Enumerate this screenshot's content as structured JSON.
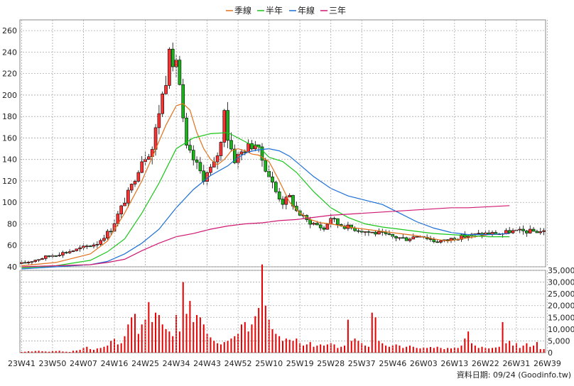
{
  "legend": [
    {
      "label": "季線",
      "color": "#e3701a"
    },
    {
      "label": "半年",
      "color": "#19c619"
    },
    {
      "label": "年線",
      "color": "#1a6fd6"
    },
    {
      "label": "三年",
      "color": "#d01873"
    }
  ],
  "footer": "資料日期: 09/24  (Goodinfo.tw)",
  "colors": {
    "up": "#ff3030",
    "down": "#19b519",
    "volume": "#e80000",
    "grid": "#aaaaaa"
  },
  "chart_data": [
    {
      "type": "candlestick",
      "ylim": [
        40,
        270
      ],
      "yticks": [
        40,
        60,
        80,
        100,
        120,
        140,
        160,
        180,
        200,
        220,
        240,
        260
      ],
      "x_labels": [
        "23W41",
        "23W50",
        "24W07",
        "24W16",
        "24W25",
        "24W34",
        "24W43",
        "24W52",
        "25W10",
        "25W19",
        "25W28",
        "25W37",
        "25W46",
        "26W03",
        "26W13",
        "26W22",
        "26W31",
        "26W39"
      ],
      "anchors": [
        [
          0,
          43
        ],
        [
          8,
          50
        ],
        [
          16,
          56
        ],
        [
          22,
          62
        ],
        [
          26,
          75
        ],
        [
          29,
          95
        ],
        [
          32,
          115
        ],
        [
          35,
          140
        ],
        [
          38,
          150
        ],
        [
          40,
          185
        ],
        [
          42,
          215
        ],
        [
          43,
          250
        ],
        [
          44,
          220
        ],
        [
          45,
          235
        ],
        [
          46,
          210
        ],
        [
          47,
          175
        ],
        [
          48,
          150
        ],
        [
          50,
          140
        ],
        [
          53,
          123
        ],
        [
          56,
          135
        ],
        [
          58,
          155
        ],
        [
          59,
          190
        ],
        [
          60,
          160
        ],
        [
          62,
          140
        ],
        [
          65,
          150
        ],
        [
          68,
          155
        ],
        [
          70,
          140
        ],
        [
          72,
          125
        ],
        [
          74,
          110
        ],
        [
          76,
          100
        ],
        [
          78,
          105
        ],
        [
          80,
          92
        ],
        [
          83,
          83
        ],
        [
          86,
          79
        ],
        [
          88,
          75
        ],
        [
          90,
          86
        ],
        [
          92,
          80
        ],
        [
          95,
          77
        ],
        [
          100,
          73
        ],
        [
          104,
          71
        ],
        [
          108,
          68
        ],
        [
          112,
          66
        ],
        [
          116,
          70
        ],
        [
          120,
          64
        ],
        [
          123,
          64
        ],
        [
          126,
          67
        ],
        [
          130,
          69
        ],
        [
          135,
          71
        ],
        [
          140,
          71
        ],
        [
          142,
          73
        ]
      ],
      "series": [
        {
          "name": "季線",
          "color": "#e3701a",
          "points": [
            [
              0,
              41
            ],
            [
              10,
              44
            ],
            [
              20,
              52
            ],
            [
              25,
              64
            ],
            [
              30,
              90
            ],
            [
              35,
              120
            ],
            [
              38,
              142
            ],
            [
              42,
              172
            ],
            [
              45,
              190
            ],
            [
              47,
              192
            ],
            [
              49,
              186
            ],
            [
              51,
              165
            ],
            [
              53,
              150
            ],
            [
              55,
              140
            ],
            [
              57,
              135
            ],
            [
              59,
              140
            ],
            [
              61,
              148
            ],
            [
              63,
              150
            ],
            [
              65,
              148
            ],
            [
              67,
              145
            ],
            [
              69,
              144
            ],
            [
              72,
              138
            ],
            [
              75,
              120
            ],
            [
              78,
              100
            ],
            [
              81,
              90
            ],
            [
              84,
              84
            ],
            [
              87,
              81
            ],
            [
              90,
              80
            ],
            [
              95,
              77
            ],
            [
              100,
              75
            ],
            [
              105,
              73
            ],
            [
              110,
              71
            ],
            [
              115,
              69
            ],
            [
              120,
              66
            ],
            [
              124,
              64
            ],
            [
              128,
              66
            ],
            [
              132,
              68
            ],
            [
              136,
              70
            ],
            [
              142,
              71
            ]
          ]
        },
        {
          "name": "半年",
          "color": "#19c619",
          "points": [
            [
              0,
              39
            ],
            [
              10,
              41
            ],
            [
              20,
              46
            ],
            [
              25,
              54
            ],
            [
              30,
              66
            ],
            [
              35,
              90
            ],
            [
              40,
              118
            ],
            [
              45,
              150
            ],
            [
              50,
              160
            ],
            [
              55,
              164
            ],
            [
              60,
              165
            ],
            [
              63,
              160
            ],
            [
              66,
              155
            ],
            [
              69,
              152
            ],
            [
              72,
              142
            ],
            [
              76,
              138
            ],
            [
              80,
              128
            ],
            [
              85,
              110
            ],
            [
              90,
              95
            ],
            [
              95,
              86
            ],
            [
              100,
              80
            ],
            [
              105,
              77
            ],
            [
              110,
              75
            ],
            [
              115,
              73
            ],
            [
              120,
              71
            ],
            [
              125,
              70
            ],
            [
              130,
              69
            ],
            [
              136,
              68
            ],
            [
              142,
              68
            ]
          ]
        },
        {
          "name": "年線",
          "color": "#1a6fd6",
          "points": [
            [
              0,
              38
            ],
            [
              10,
              40
            ],
            [
              20,
              42
            ],
            [
              25,
              45
            ],
            [
              30,
              52
            ],
            [
              35,
              62
            ],
            [
              40,
              75
            ],
            [
              45,
              95
            ],
            [
              50,
              112
            ],
            [
              55,
              125
            ],
            [
              60,
              134
            ],
            [
              63,
              142
            ],
            [
              66,
              147
            ],
            [
              69,
              149
            ],
            [
              72,
              150
            ],
            [
              75,
              148
            ],
            [
              78,
              143
            ],
            [
              81,
              135
            ],
            [
              85,
              124
            ],
            [
              90,
              113
            ],
            [
              95,
              106
            ],
            [
              100,
              102
            ],
            [
              105,
              98
            ],
            [
              110,
              90
            ],
            [
              115,
              82
            ],
            [
              120,
              76
            ],
            [
              125,
              72
            ],
            [
              130,
              70
            ],
            [
              136,
              70
            ],
            [
              142,
              71
            ]
          ]
        },
        {
          "name": "三年",
          "color": "#d01873",
          "points": [
            [
              0,
              40
            ],
            [
              10,
              41
            ],
            [
              20,
              42
            ],
            [
              25,
              44
            ],
            [
              30,
              47
            ],
            [
              35,
              55
            ],
            [
              40,
              62
            ],
            [
              45,
              68
            ],
            [
              50,
              71
            ],
            [
              55,
              75
            ],
            [
              60,
              78
            ],
            [
              65,
              80
            ],
            [
              70,
              81
            ],
            [
              75,
              83
            ],
            [
              80,
              84
            ],
            [
              85,
              86
            ],
            [
              90,
              88
            ],
            [
              95,
              89
            ],
            [
              100,
              90
            ],
            [
              105,
              91
            ],
            [
              110,
              92
            ],
            [
              115,
              93
            ],
            [
              120,
              94
            ],
            [
              125,
              95
            ],
            [
              130,
              95
            ],
            [
              136,
              96
            ],
            [
              142,
              97
            ]
          ]
        }
      ]
    },
    {
      "type": "bar",
      "ylim": [
        0,
        35000
      ],
      "yticks": [
        0,
        5000,
        10000,
        15000,
        20000,
        25000,
        30000,
        35000
      ],
      "ytick_labels": [
        "0",
        "5,000",
        "10,000",
        "15,000",
        "20,000",
        "25,000",
        "30,000",
        "35,000"
      ],
      "values": [
        300,
        400,
        600,
        500,
        700,
        800,
        600,
        500,
        400,
        600,
        700,
        800,
        500,
        400,
        300,
        800,
        900,
        1200,
        2000,
        2500,
        1500,
        1200,
        1800,
        2000,
        2500,
        3000,
        5000,
        6000,
        3500,
        4000,
        7000,
        12000,
        15000,
        16500,
        8000,
        12000,
        14000,
        21500,
        13000,
        17000,
        16000,
        12000,
        10000,
        9000,
        7000,
        16000,
        9000,
        30000,
        16500,
        22000,
        13000,
        16000,
        15000,
        12000,
        8000,
        6500,
        5000,
        4000,
        3500,
        4500,
        5000,
        6000,
        7000,
        8000,
        12000,
        13000,
        9000,
        12000,
        15500,
        19000,
        37500,
        20000,
        14000,
        10000,
        8000,
        7000,
        5000,
        6000,
        5500,
        5000,
        6000,
        4000,
        3000,
        3500,
        4500,
        2500,
        3000,
        3500,
        3000,
        3500,
        4000,
        3500,
        2000,
        2500,
        3000,
        14000,
        5000,
        6000,
        5000,
        4000,
        3000,
        2500,
        17000,
        15000,
        5000,
        4000,
        3000,
        2500,
        3000,
        3500,
        3000,
        2000,
        2500,
        3000,
        2500,
        2000,
        1800,
        2200,
        2000,
        2400,
        2000,
        2500,
        2000,
        1500,
        2000,
        1800,
        2200,
        2000,
        3000,
        6000,
        9000,
        4000,
        3000,
        2000,
        2500,
        2000,
        1800,
        2000,
        2200,
        2500,
        13000,
        4000,
        5000,
        3000,
        4000,
        2000,
        3000,
        4000,
        2500,
        3000,
        4500,
        1500,
        1500
      ]
    }
  ]
}
